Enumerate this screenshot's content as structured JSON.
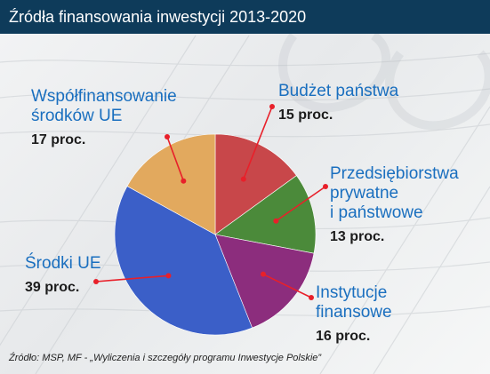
{
  "title": "Źródła finansowania inwestycji 2013-2020",
  "source": "Źródło: MSP, MF - „Wyliczenia i szczegóły programu Inwestycje Polskie”",
  "chart_data": {
    "type": "pie",
    "title": "Źródła finansowania inwestycji 2013-2020",
    "unit": "proc.",
    "start_angle_deg": 0,
    "direction": "clockwise",
    "slices": [
      {
        "label": "Budżet państwa",
        "value": 15,
        "value_label": "15 proc.",
        "color": "#c8474a"
      },
      {
        "label": "Przedsiębiorstwa prywatne i państwowe",
        "value": 13,
        "value_label": "13 proc.",
        "color": "#4b8a3a"
      },
      {
        "label": "Instytucje finansowe",
        "value": 16,
        "value_label": "16 proc.",
        "color": "#8c2d7d"
      },
      {
        "label": "Środki UE",
        "value": 39,
        "value_label": "39 proc.",
        "color": "#3b5fc8"
      },
      {
        "label": "Współfinansowanie środków UE",
        "value": 17,
        "value_label": "17 proc.",
        "color": "#e2a95e"
      }
    ]
  },
  "labels": [
    {
      "lines": [
        "Budżet państwa"
      ],
      "value": "15 proc."
    },
    {
      "lines": [
        "Przedsiębiorstwa",
        "prywatne",
        "i państwowe"
      ],
      "value": "13 proc."
    },
    {
      "lines": [
        "Instytucje",
        "finansowe"
      ],
      "value": "16 proc."
    },
    {
      "lines": [
        "Środki UE"
      ],
      "value": "39 proc."
    },
    {
      "lines": [
        "Współfinansowanie",
        "środków UE"
      ],
      "value": "17 proc."
    }
  ],
  "colors": {
    "title_bar": "#0e3b5a",
    "label_text": "#1a6fbf",
    "leader_line": "#e8202a"
  }
}
